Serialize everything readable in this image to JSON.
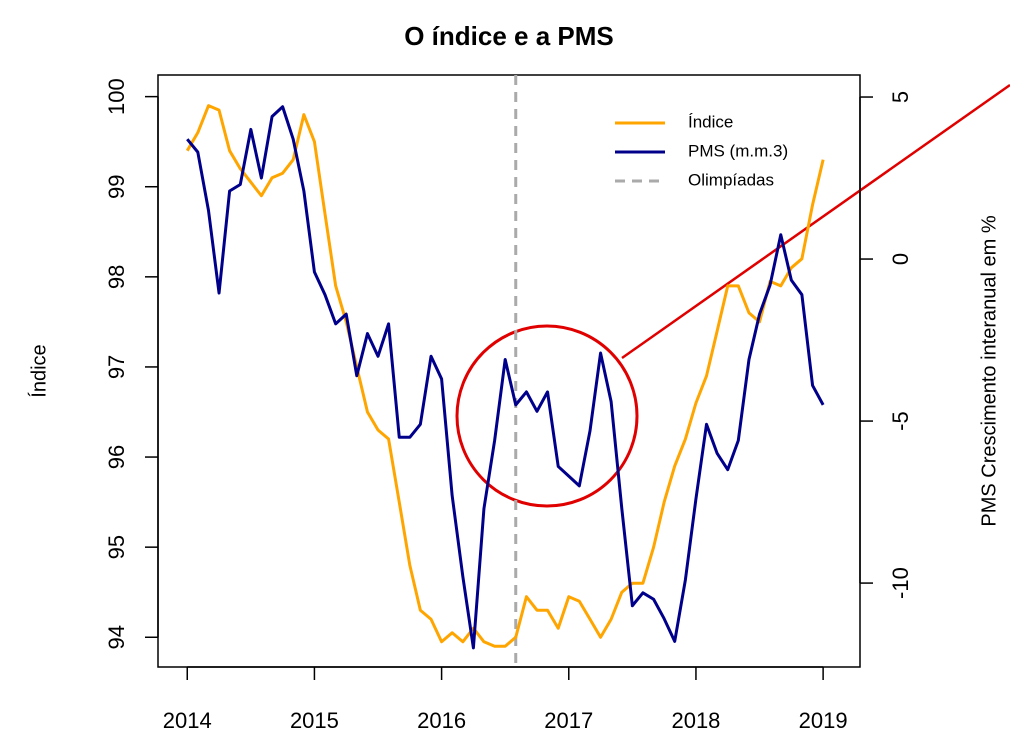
{
  "chart_data": {
    "type": "line",
    "title": "O índice e a PMS",
    "ylabel": "Índice",
    "y2label": "PMS Crescimento interanual em %",
    "x": [
      2014,
      2014.083,
      2014.167,
      2014.25,
      2014.333,
      2014.417,
      2014.5,
      2014.583,
      2014.667,
      2014.75,
      2014.833,
      2014.917,
      2015,
      2015.083,
      2015.167,
      2015.25,
      2015.333,
      2015.417,
      2015.5,
      2015.583,
      2015.667,
      2015.75,
      2015.833,
      2015.917,
      2016,
      2016.083,
      2016.167,
      2016.25,
      2016.333,
      2016.417,
      2016.5,
      2016.583,
      2016.667,
      2016.75,
      2016.833,
      2016.917,
      2017,
      2017.083,
      2017.167,
      2017.25,
      2017.333,
      2017.417,
      2017.5,
      2017.583,
      2017.667,
      2017.75,
      2017.833,
      2017.917,
      2018,
      2018.083,
      2018.167,
      2018.25,
      2018.333,
      2018.417,
      2018.5,
      2018.583,
      2018.667,
      2018.75,
      2018.833,
      2018.917,
      2019
    ],
    "series": [
      {
        "name": "Índice",
        "color": "#FFA500",
        "axis": "y",
        "values": [
          99.4,
          99.6,
          99.9,
          99.85,
          99.4,
          99.2,
          99.05,
          98.9,
          99.1,
          99.15,
          99.3,
          99.8,
          99.5,
          98.7,
          97.9,
          97.5,
          97.0,
          96.5,
          96.3,
          96.2,
          95.5,
          94.8,
          94.3,
          94.2,
          93.95,
          94.05,
          93.95,
          94.1,
          93.95,
          93.9,
          93.9,
          94.0,
          94.45,
          94.3,
          94.3,
          94.1,
          94.45,
          94.4,
          94.2,
          94.0,
          94.2,
          94.5,
          94.6,
          94.6,
          95.0,
          95.5,
          95.9,
          96.2,
          96.6,
          96.9,
          97.4,
          97.9,
          97.9,
          97.6,
          97.5,
          97.95,
          97.9,
          98.1,
          98.2,
          98.8,
          99.3
        ]
      },
      {
        "name": "PMS (m.m.3)",
        "color": "#00008B",
        "axis": "y2",
        "values": [
          3.7,
          3.3,
          1.5,
          -1.05,
          2.1,
          2.3,
          4.0,
          2.5,
          4.4,
          4.7,
          3.7,
          2.1,
          -0.4,
          -1.1,
          -2.0,
          -1.7,
          -3.6,
          -2.3,
          -3.0,
          -2.0,
          -5.5,
          -5.5,
          -5.1,
          -3.0,
          -3.7,
          -7.3,
          -9.8,
          -12.0,
          -7.7,
          -5.6,
          -3.1,
          -4.5,
          -4.1,
          -4.7,
          -4.1,
          -6.4,
          -6.7,
          -7.0,
          -5.3,
          -2.9,
          -4.4,
          -7.7,
          -10.7,
          -10.3,
          -10.5,
          -11.1,
          -11.8,
          -9.9,
          -7.4,
          -5.1,
          -6.0,
          -6.5,
          -5.6,
          -3.1,
          -1.7,
          -0.8,
          0.75,
          -0.65,
          -1.1,
          -3.9,
          -4.5
        ]
      }
    ],
    "vlines": [
      {
        "name": "Olimpíadas",
        "x": 2016.583,
        "color": "#AAAAAA"
      }
    ],
    "xlim": [
      2013.77,
      2019.29
    ],
    "xticks": [
      2014,
      2015,
      2016,
      2017,
      2018,
      2019
    ],
    "ylim": [
      93.67,
      100.24
    ],
    "yticks": [
      94,
      95,
      96,
      97,
      98,
      99,
      100
    ],
    "y2lim": [
      -12.59,
      5.68
    ],
    "y2ticks": [
      -10,
      -5,
      0,
      5
    ],
    "legend": "top-right"
  }
}
